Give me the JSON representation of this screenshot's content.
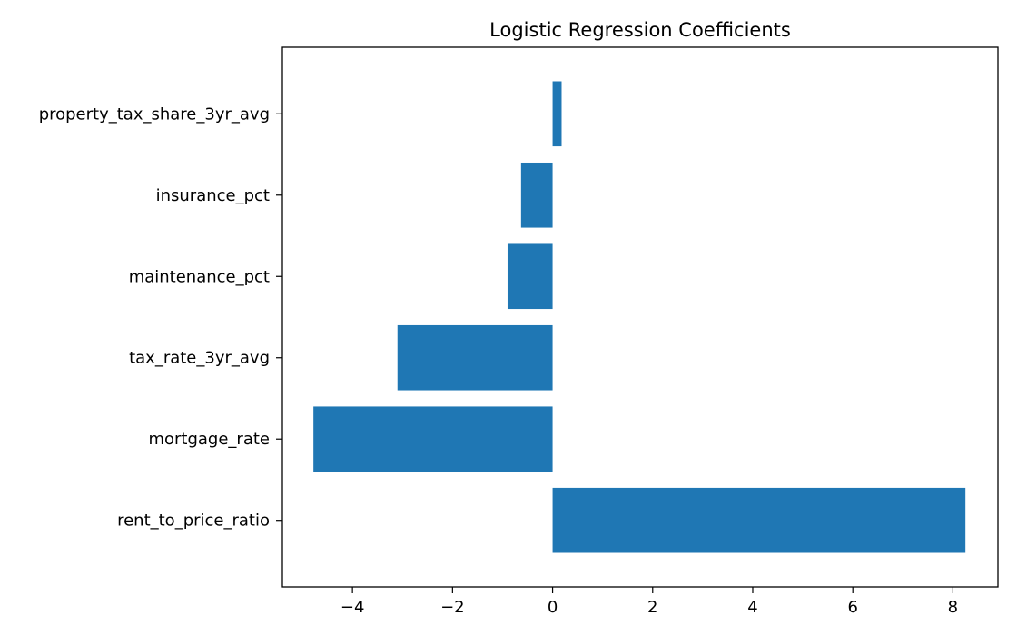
{
  "chart_data": {
    "type": "bar",
    "orientation": "horizontal",
    "title": "Logistic Regression Coefficients",
    "xlabel": "",
    "ylabel": "",
    "categories": [
      "rent_to_price_ratio",
      "mortgage_rate",
      "tax_rate_3yr_avg",
      "maintenance_pct",
      "insurance_pct",
      "property_tax_share_3yr_avg"
    ],
    "values": [
      8.25,
      -4.78,
      -3.1,
      -0.9,
      -0.63,
      0.18
    ],
    "xlim": [
      -5.4,
      8.9
    ],
    "xticks": [
      -4,
      -2,
      0,
      2,
      4,
      6,
      8
    ],
    "xtick_labels": [
      "−4",
      "−2",
      "0",
      "2",
      "4",
      "6",
      "8"
    ],
    "bar_color": "#1f77b4",
    "grid": false,
    "legend": false
  }
}
